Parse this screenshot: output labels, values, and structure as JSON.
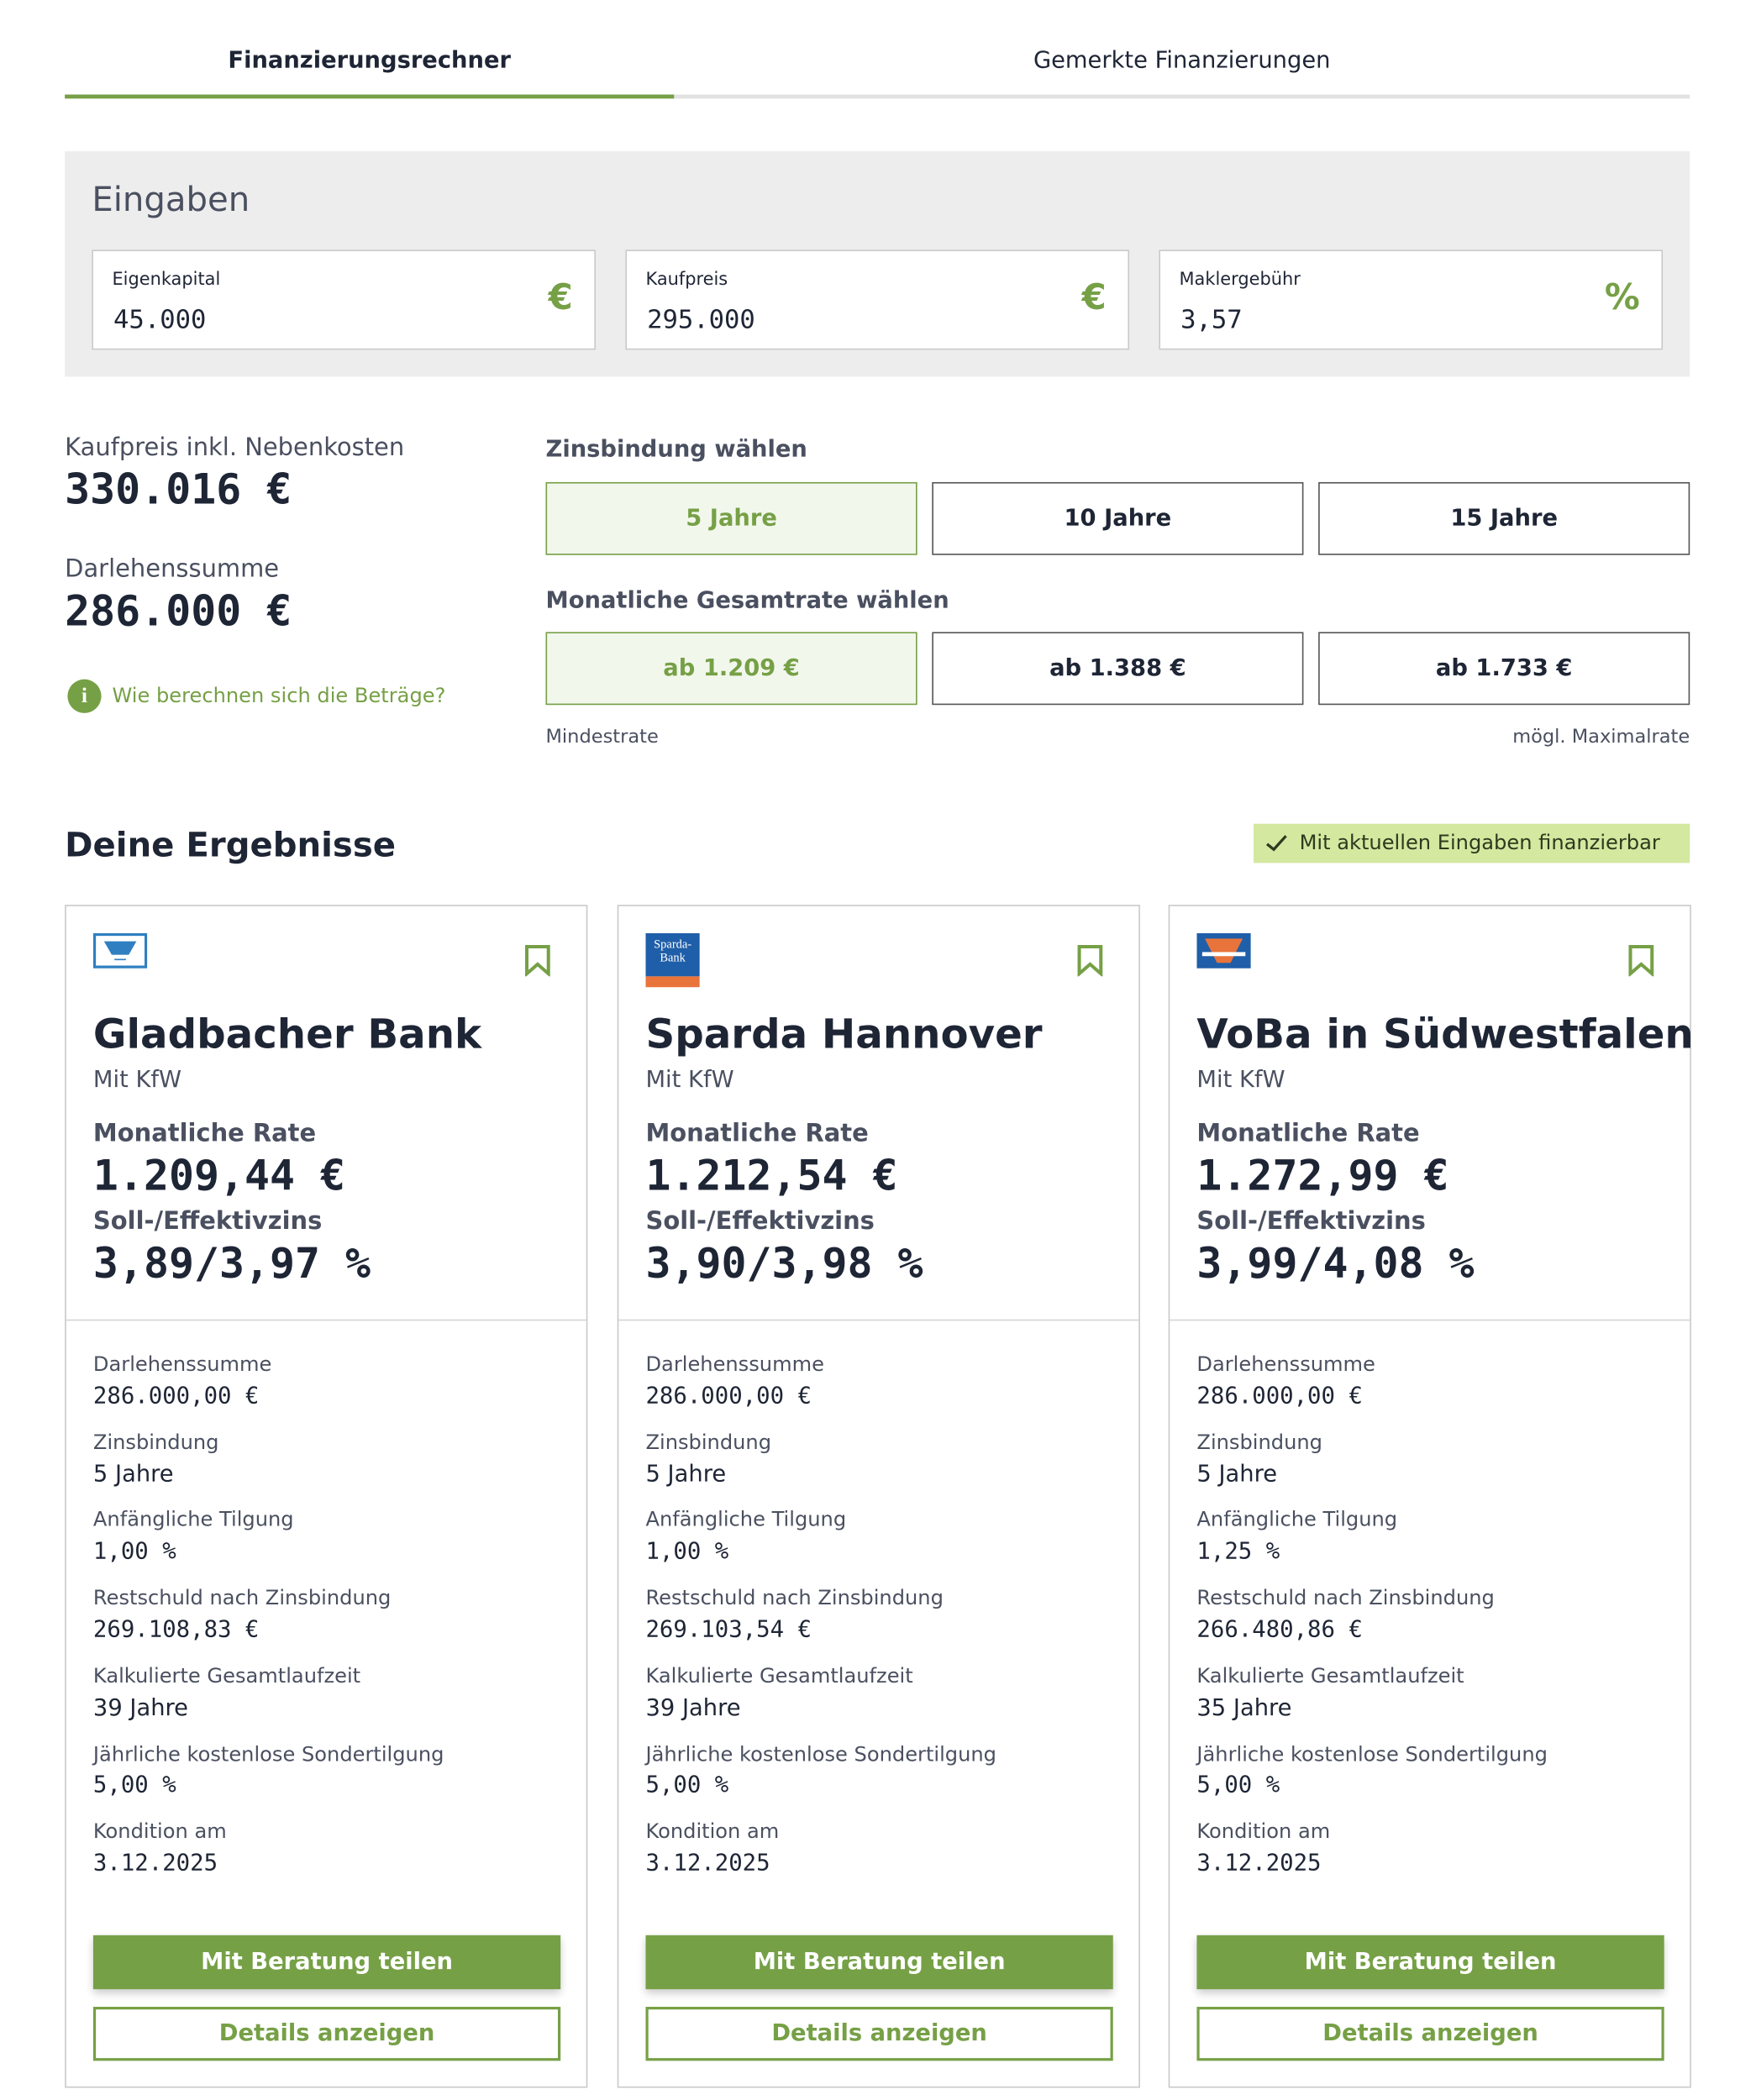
{
  "tabs": [
    "Finanzierungsrechner",
    "Gemerkte Finanzierungen"
  ],
  "inputs": {
    "title": "Eingaben",
    "fields": [
      {
        "label": "Eigenkapital",
        "value": "45.000",
        "unit": "€"
      },
      {
        "label": "Kaufpreis",
        "value": "295.000",
        "unit": "€"
      },
      {
        "label": "Maklergebühr",
        "value": "3,57",
        "unit": "%"
      }
    ]
  },
  "summary": [
    {
      "label": "Kaufpreis inkl. Nebenkosten",
      "value": "330.016 €"
    },
    {
      "label": "Darlehenssumme",
      "value": "286.000 €"
    }
  ],
  "info_link": "Wie berechnen sich die Beträge?",
  "zinsbindung": {
    "title": "Zinsbindung wählen",
    "options": [
      "5 Jahre",
      "10 Jahre",
      "15 Jahre"
    ]
  },
  "rate": {
    "title": "Monatliche Gesamtrate wählen",
    "options": [
      "ab 1.209 €",
      "ab 1.388 €",
      "ab 1.733 €"
    ],
    "min_label": "Mindestrate",
    "max_label": "mögl. Maximalrate"
  },
  "results": {
    "title": "Deine Ergebnisse",
    "badge": "Mit aktuellen Eingaben finanzierbar",
    "offers": [
      {
        "bank": "Gladbacher Bank",
        "subtitle": "Mit KfW",
        "rate_label": "Monatliche Rate",
        "rate": "1.209,44 €",
        "zins_label": "Soll-/Effektivzins",
        "zins": "3,89/3,97 %",
        "details": [
          {
            "label": "Darlehenssumme",
            "value": "286.000,00 €"
          },
          {
            "label": "Zinsbindung",
            "value": "5 Jahre"
          },
          {
            "label": "Anfängliche Tilgung",
            "value": "1,00 %"
          },
          {
            "label": "Restschuld nach Zinsbindung",
            "value": "269.108,83 €"
          },
          {
            "label": "Kalkulierte Gesamtlaufzeit",
            "value": "39 Jahre"
          },
          {
            "label": "Jährliche kostenlose Sondertilgung",
            "value": "5,00 %"
          },
          {
            "label": "Kondition am",
            "value": "3.12.2025"
          }
        ],
        "share_button": "Mit Beratung teilen",
        "details_button": "Details anzeigen"
      },
      {
        "bank": "Sparda Hannover",
        "logo_text": [
          "Sparda-",
          "Bank"
        ],
        "subtitle": "Mit KfW",
        "rate_label": "Monatliche Rate",
        "rate": "1.212,54 €",
        "zins_label": "Soll-/Effektivzins",
        "zins": "3,90/3,98 %",
        "details": [
          {
            "label": "Darlehenssumme",
            "value": "286.000,00 €"
          },
          {
            "label": "Zinsbindung",
            "value": "5 Jahre"
          },
          {
            "label": "Anfängliche Tilgung",
            "value": "1,00 %"
          },
          {
            "label": "Restschuld nach Zinsbindung",
            "value": "269.103,54 €"
          },
          {
            "label": "Kalkulierte Gesamtlaufzeit",
            "value": "39 Jahre"
          },
          {
            "label": "Jährliche kostenlose Sondertilgung",
            "value": "5,00 %"
          },
          {
            "label": "Kondition am",
            "value": "3.12.2025"
          }
        ],
        "share_button": "Mit Beratung teilen",
        "details_button": "Details anzeigen"
      },
      {
        "bank": "VoBa in Südwestfalen",
        "subtitle": "Mit KfW",
        "rate_label": "Monatliche Rate",
        "rate": "1.272,99 €",
        "zins_label": "Soll-/Effektivzins",
        "zins": "3,99/4,08 %",
        "details": [
          {
            "label": "Darlehenssumme",
            "value": "286.000,00 €"
          },
          {
            "label": "Zinsbindung",
            "value": "5 Jahre"
          },
          {
            "label": "Anfängliche Tilgung",
            "value": "1,25 %"
          },
          {
            "label": "Restschuld nach Zinsbindung",
            "value": "266.480,86 €"
          },
          {
            "label": "Kalkulierte Gesamtlaufzeit",
            "value": "35 Jahre"
          },
          {
            "label": "Jährliche kostenlose Sondertilgung",
            "value": "5,00 %"
          },
          {
            "label": "Kondition am",
            "value": "3.12.2025"
          }
        ],
        "share_button": "Mit Beratung teilen",
        "details_button": "Details anzeigen"
      }
    ]
  }
}
